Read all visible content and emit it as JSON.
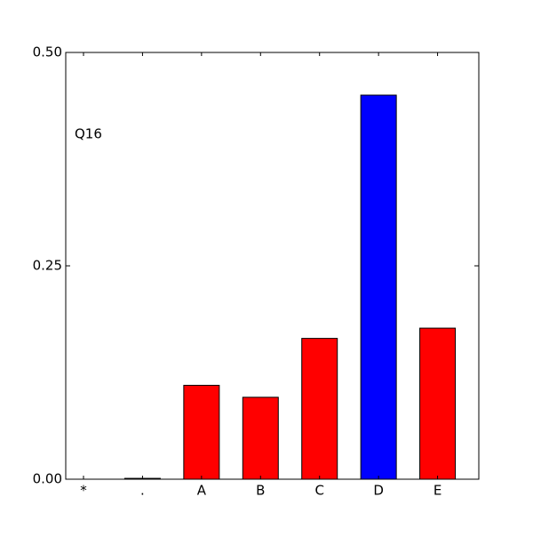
{
  "chart_data": {
    "type": "bar",
    "annotation": "Q16",
    "categories": [
      "*",
      ".",
      "A",
      "B",
      "C",
      "D",
      "E"
    ],
    "values": [
      0,
      0.001,
      0.11,
      0.096,
      0.165,
      0.45,
      0.177
    ],
    "colors": [
      "#ff0000",
      "#ff0000",
      "#ff0000",
      "#ff0000",
      "#ff0000",
      "#0000ff",
      "#ff0000"
    ],
    "ylim": [
      0,
      0.5
    ],
    "yticks": [
      {
        "value": 0,
        "label": "0.00"
      },
      {
        "value": 0.25,
        "label": "0.25"
      },
      {
        "value": 0.5,
        "label": "0.50"
      }
    ]
  }
}
